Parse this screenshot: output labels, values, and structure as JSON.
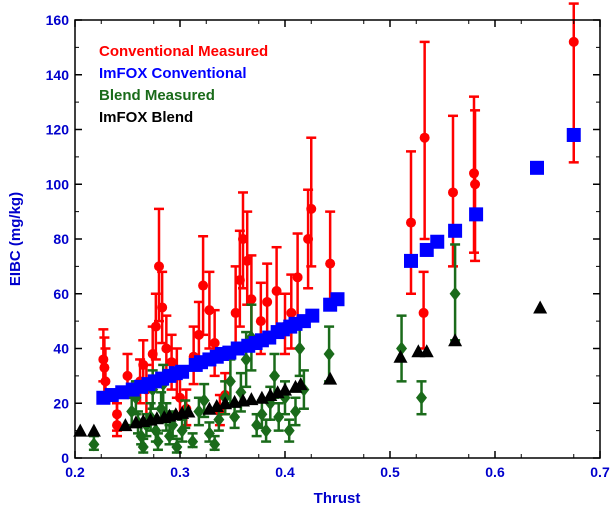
{
  "chart_data": {
    "type": "scatter",
    "title": "",
    "xlabel": "Thrust",
    "ylabel": "EIBC (mg/kg)",
    "xlim": [
      0.2,
      0.7
    ],
    "ylim": [
      0,
      160
    ],
    "x_ticks": [
      "0.2",
      "0.3",
      "0.4",
      "0.5",
      "0.6",
      "0.7"
    ],
    "y_ticks": [
      "0",
      "20",
      "40",
      "60",
      "80",
      "100",
      "120",
      "140",
      "160"
    ],
    "grid": false,
    "legend_placement": "top-left",
    "series": [
      {
        "name": "Conventional Measured",
        "color": "#ff0000",
        "marker": "circle",
        "points": [
          {
            "x": 0.227,
            "y": 36,
            "lo": 28,
            "hi": 47
          },
          {
            "x": 0.228,
            "y": 33,
            "lo": 24,
            "hi": 44
          },
          {
            "x": 0.229,
            "y": 28,
            "lo": 20,
            "hi": 40
          },
          {
            "x": 0.24,
            "y": 12,
            "lo": 8,
            "hi": 20
          },
          {
            "x": 0.24,
            "y": 16,
            "lo": 10,
            "hi": 24
          },
          {
            "x": 0.25,
            "y": 30,
            "lo": 22,
            "hi": 38
          },
          {
            "x": 0.262,
            "y": 28,
            "lo": 20,
            "hi": 36
          },
          {
            "x": 0.265,
            "y": 34,
            "lo": 24,
            "hi": 43
          },
          {
            "x": 0.268,
            "y": 25,
            "lo": 16,
            "hi": 34
          },
          {
            "x": 0.274,
            "y": 38,
            "lo": 28,
            "hi": 48
          },
          {
            "x": 0.277,
            "y": 48,
            "lo": 36,
            "hi": 60
          },
          {
            "x": 0.28,
            "y": 70,
            "lo": 50,
            "hi": 91
          },
          {
            "x": 0.283,
            "y": 55,
            "lo": 42,
            "hi": 68
          },
          {
            "x": 0.287,
            "y": 40,
            "lo": 30,
            "hi": 52
          },
          {
            "x": 0.292,
            "y": 35,
            "lo": 25,
            "hi": 45
          },
          {
            "x": 0.297,
            "y": 30,
            "lo": 22,
            "hi": 40
          },
          {
            "x": 0.3,
            "y": 22,
            "lo": 15,
            "hi": 30
          },
          {
            "x": 0.306,
            "y": 18,
            "lo": 12,
            "hi": 25
          },
          {
            "x": 0.313,
            "y": 37,
            "lo": 27,
            "hi": 48
          },
          {
            "x": 0.318,
            "y": 45,
            "lo": 33,
            "hi": 57
          },
          {
            "x": 0.322,
            "y": 63,
            "lo": 45,
            "hi": 81
          },
          {
            "x": 0.328,
            "y": 54,
            "lo": 40,
            "hi": 68
          },
          {
            "x": 0.333,
            "y": 42,
            "lo": 30,
            "hi": 54
          },
          {
            "x": 0.338,
            "y": 17,
            "lo": 12,
            "hi": 23
          },
          {
            "x": 0.343,
            "y": 23,
            "lo": 16,
            "hi": 31
          },
          {
            "x": 0.353,
            "y": 53,
            "lo": 38,
            "hi": 70
          },
          {
            "x": 0.357,
            "y": 65,
            "lo": 48,
            "hi": 83
          },
          {
            "x": 0.36,
            "y": 80,
            "lo": 62,
            "hi": 97
          },
          {
            "x": 0.364,
            "y": 72,
            "lo": 56,
            "hi": 90
          },
          {
            "x": 0.368,
            "y": 58,
            "lo": 44,
            "hi": 74
          },
          {
            "x": 0.377,
            "y": 50,
            "lo": 38,
            "hi": 64
          },
          {
            "x": 0.383,
            "y": 57,
            "lo": 44,
            "hi": 71
          },
          {
            "x": 0.392,
            "y": 61,
            "lo": 46,
            "hi": 77
          },
          {
            "x": 0.4,
            "y": 48,
            "lo": 38,
            "hi": 60
          },
          {
            "x": 0.406,
            "y": 53,
            "lo": 40,
            "hi": 67
          },
          {
            "x": 0.412,
            "y": 66,
            "lo": 51,
            "hi": 82
          },
          {
            "x": 0.422,
            "y": 80,
            "lo": 62,
            "hi": 98
          },
          {
            "x": 0.425,
            "y": 91,
            "lo": 70,
            "hi": 117
          },
          {
            "x": 0.443,
            "y": 71,
            "lo": 54,
            "hi": 90
          },
          {
            "x": 0.52,
            "y": 86,
            "lo": 60,
            "hi": 112
          },
          {
            "x": 0.532,
            "y": 53,
            "lo": 40,
            "hi": 68
          },
          {
            "x": 0.533,
            "y": 117,
            "lo": 80,
            "hi": 152
          },
          {
            "x": 0.56,
            "y": 97,
            "lo": 70,
            "hi": 125
          },
          {
            "x": 0.58,
            "y": 104,
            "lo": 75,
            "hi": 132
          },
          {
            "x": 0.581,
            "y": 100,
            "lo": 72,
            "hi": 127
          },
          {
            "x": 0.675,
            "y": 152,
            "lo": 108,
            "hi": 166
          }
        ]
      },
      {
        "name": "ImFOX Conventional",
        "color": "#0000ff",
        "marker": "square",
        "points": [
          {
            "x": 0.227,
            "y": 22
          },
          {
            "x": 0.235,
            "y": 23
          },
          {
            "x": 0.245,
            "y": 24
          },
          {
            "x": 0.255,
            "y": 25
          },
          {
            "x": 0.263,
            "y": 26
          },
          {
            "x": 0.27,
            "y": 27
          },
          {
            "x": 0.276,
            "y": 28
          },
          {
            "x": 0.283,
            "y": 29
          },
          {
            "x": 0.29,
            "y": 30
          },
          {
            "x": 0.296,
            "y": 31
          },
          {
            "x": 0.302,
            "y": 31.5
          },
          {
            "x": 0.315,
            "y": 34
          },
          {
            "x": 0.32,
            "y": 35
          },
          {
            "x": 0.328,
            "y": 36
          },
          {
            "x": 0.335,
            "y": 37
          },
          {
            "x": 0.34,
            "y": 38
          },
          {
            "x": 0.347,
            "y": 38.5
          },
          {
            "x": 0.355,
            "y": 40
          },
          {
            "x": 0.365,
            "y": 41
          },
          {
            "x": 0.372,
            "y": 42
          },
          {
            "x": 0.378,
            "y": 43
          },
          {
            "x": 0.385,
            "y": 44
          },
          {
            "x": 0.393,
            "y": 46
          },
          {
            "x": 0.398,
            "y": 47
          },
          {
            "x": 0.405,
            "y": 48
          },
          {
            "x": 0.41,
            "y": 49
          },
          {
            "x": 0.418,
            "y": 50
          },
          {
            "x": 0.426,
            "y": 52
          },
          {
            "x": 0.443,
            "y": 56
          },
          {
            "x": 0.45,
            "y": 58
          },
          {
            "x": 0.52,
            "y": 72
          },
          {
            "x": 0.535,
            "y": 76
          },
          {
            "x": 0.545,
            "y": 79
          },
          {
            "x": 0.562,
            "y": 83
          },
          {
            "x": 0.582,
            "y": 89
          },
          {
            "x": 0.64,
            "y": 106
          },
          {
            "x": 0.675,
            "y": 118
          }
        ]
      },
      {
        "name": "Blend Measured",
        "color": "#1a6b1a",
        "marker": "diamond",
        "points": [
          {
            "x": 0.218,
            "y": 5,
            "lo": 3,
            "hi": 8
          },
          {
            "x": 0.254,
            "y": 17,
            "lo": 12,
            "hi": 22
          },
          {
            "x": 0.258,
            "y": 22,
            "lo": 16,
            "hi": 28
          },
          {
            "x": 0.26,
            "y": 13,
            "lo": 9,
            "hi": 17
          },
          {
            "x": 0.263,
            "y": 8,
            "lo": 5,
            "hi": 12
          },
          {
            "x": 0.265,
            "y": 4,
            "lo": 2,
            "hi": 7
          },
          {
            "x": 0.268,
            "y": 12,
            "lo": 8,
            "hi": 16
          },
          {
            "x": 0.272,
            "y": 15,
            "lo": 10,
            "hi": 20
          },
          {
            "x": 0.274,
            "y": 25,
            "lo": 18,
            "hi": 32
          },
          {
            "x": 0.277,
            "y": 10,
            "lo": 6,
            "hi": 14
          },
          {
            "x": 0.279,
            "y": 6,
            "lo": 3,
            "hi": 9
          },
          {
            "x": 0.282,
            "y": 18,
            "lo": 13,
            "hi": 24
          },
          {
            "x": 0.284,
            "y": 27,
            "lo": 20,
            "hi": 34
          },
          {
            "x": 0.287,
            "y": 15,
            "lo": 10,
            "hi": 20
          },
          {
            "x": 0.29,
            "y": 8,
            "lo": 5,
            "hi": 12
          },
          {
            "x": 0.293,
            "y": 12,
            "lo": 8,
            "hi": 17
          },
          {
            "x": 0.297,
            "y": 4,
            "lo": 2,
            "hi": 7
          },
          {
            "x": 0.302,
            "y": 10,
            "lo": 6,
            "hi": 14
          },
          {
            "x": 0.305,
            "y": 16,
            "lo": 11,
            "hi": 21
          },
          {
            "x": 0.312,
            "y": 6,
            "lo": 4,
            "hi": 9
          },
          {
            "x": 0.318,
            "y": 17,
            "lo": 12,
            "hi": 22
          },
          {
            "x": 0.323,
            "y": 21,
            "lo": 15,
            "hi": 27
          },
          {
            "x": 0.328,
            "y": 9,
            "lo": 6,
            "hi": 13
          },
          {
            "x": 0.333,
            "y": 5,
            "lo": 3,
            "hi": 8
          },
          {
            "x": 0.337,
            "y": 14,
            "lo": 10,
            "hi": 19
          },
          {
            "x": 0.343,
            "y": 22,
            "lo": 16,
            "hi": 28
          },
          {
            "x": 0.348,
            "y": 28,
            "lo": 20,
            "hi": 36
          },
          {
            "x": 0.352,
            "y": 15,
            "lo": 11,
            "hi": 20
          },
          {
            "x": 0.358,
            "y": 24,
            "lo": 17,
            "hi": 31
          },
          {
            "x": 0.363,
            "y": 36,
            "lo": 26,
            "hi": 46
          },
          {
            "x": 0.368,
            "y": 44,
            "lo": 32,
            "hi": 56
          },
          {
            "x": 0.373,
            "y": 12,
            "lo": 8,
            "hi": 16
          },
          {
            "x": 0.378,
            "y": 16,
            "lo": 11,
            "hi": 21
          },
          {
            "x": 0.382,
            "y": 10,
            "lo": 6,
            "hi": 14
          },
          {
            "x": 0.386,
            "y": 20,
            "lo": 14,
            "hi": 26
          },
          {
            "x": 0.39,
            "y": 30,
            "lo": 22,
            "hi": 38
          },
          {
            "x": 0.394,
            "y": 15,
            "lo": 10,
            "hi": 20
          },
          {
            "x": 0.4,
            "y": 22,
            "lo": 16,
            "hi": 28
          },
          {
            "x": 0.404,
            "y": 10,
            "lo": 6,
            "hi": 14
          },
          {
            "x": 0.41,
            "y": 17,
            "lo": 12,
            "hi": 22
          },
          {
            "x": 0.414,
            "y": 40,
            "lo": 30,
            "hi": 50
          },
          {
            "x": 0.418,
            "y": 25,
            "lo": 18,
            "hi": 32
          },
          {
            "x": 0.442,
            "y": 38,
            "lo": 28,
            "hi": 48
          },
          {
            "x": 0.511,
            "y": 40,
            "lo": 28,
            "hi": 52
          },
          {
            "x": 0.53,
            "y": 22,
            "lo": 16,
            "hi": 28
          },
          {
            "x": 0.562,
            "y": 60,
            "lo": 43,
            "hi": 78
          }
        ]
      },
      {
        "name": "ImFOX Blend",
        "color": "#000000",
        "marker": "triangle",
        "points": [
          {
            "x": 0.205,
            "y": 10
          },
          {
            "x": 0.218,
            "y": 10
          },
          {
            "x": 0.248,
            "y": 12
          },
          {
            "x": 0.258,
            "y": 13
          },
          {
            "x": 0.265,
            "y": 13.5
          },
          {
            "x": 0.272,
            "y": 14
          },
          {
            "x": 0.278,
            "y": 14.5
          },
          {
            "x": 0.285,
            "y": 15
          },
          {
            "x": 0.29,
            "y": 15.5
          },
          {
            "x": 0.296,
            "y": 16
          },
          {
            "x": 0.302,
            "y": 16.5
          },
          {
            "x": 0.308,
            "y": 17
          },
          {
            "x": 0.328,
            "y": 18
          },
          {
            "x": 0.335,
            "y": 19
          },
          {
            "x": 0.343,
            "y": 20
          },
          {
            "x": 0.352,
            "y": 20.5
          },
          {
            "x": 0.36,
            "y": 21
          },
          {
            "x": 0.368,
            "y": 21.5
          },
          {
            "x": 0.378,
            "y": 22
          },
          {
            "x": 0.386,
            "y": 23
          },
          {
            "x": 0.393,
            "y": 24
          },
          {
            "x": 0.4,
            "y": 25
          },
          {
            "x": 0.41,
            "y": 26
          },
          {
            "x": 0.415,
            "y": 27
          },
          {
            "x": 0.443,
            "y": 29
          },
          {
            "x": 0.51,
            "y": 37
          },
          {
            "x": 0.527,
            "y": 39
          },
          {
            "x": 0.535,
            "y": 39
          },
          {
            "x": 0.562,
            "y": 43
          },
          {
            "x": 0.643,
            "y": 55
          }
        ]
      }
    ]
  }
}
